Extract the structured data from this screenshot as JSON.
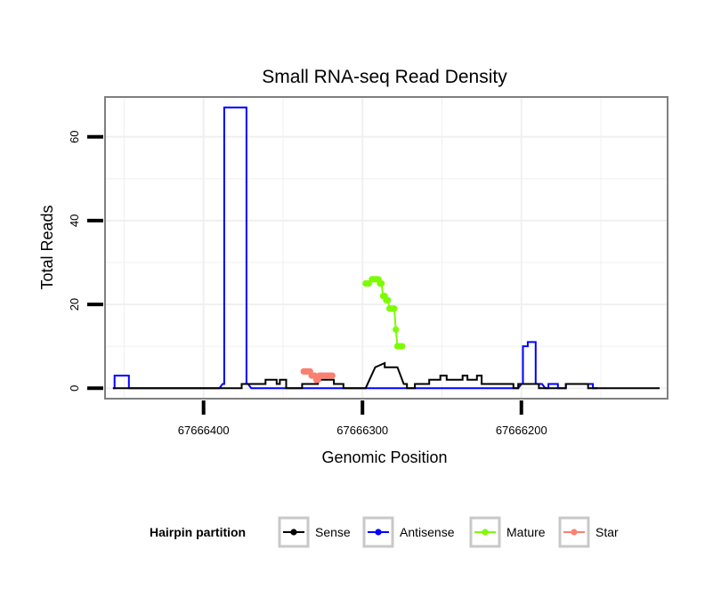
{
  "chart_data": {
    "type": "line",
    "title": "Small RNA-seq Read Density",
    "xlabel": "Genomic Position",
    "ylabel": "Total Reads",
    "x_reversed": true,
    "xlim": [
      67666462,
      67666108
    ],
    "ylim": [
      -2.5,
      69.5
    ],
    "x_ticks": [
      67666400,
      67666300,
      67666200
    ],
    "x_tick_labels": [
      "67666400",
      "67666300",
      "67666200"
    ],
    "y_ticks": [
      0,
      20,
      40,
      60
    ],
    "y_tick_labels": [
      "0",
      "20",
      "40",
      "60"
    ],
    "grid": true,
    "legend": {
      "title": "Hairpin partition",
      "placement": "bottom",
      "entries": [
        {
          "label": "Sense",
          "color": "#000000"
        },
        {
          "label": "Antisense",
          "color": "#0000ff"
        },
        {
          "label": "Mature",
          "color": "#7cfc00"
        },
        {
          "label": "Star",
          "color": "#fa8072"
        }
      ]
    },
    "series": [
      {
        "name": "Sense",
        "color": "#000000",
        "x": [
          67666457,
          67666376,
          67666376,
          67666361,
          67666361,
          67666354,
          67666354,
          67666352,
          67666352,
          67666348,
          67666348,
          67666338,
          67666338,
          67666328,
          67666328,
          67666318,
          67666318,
          67666312,
          67666312,
          67666298,
          67666292,
          67666286,
          67666286,
          67666278,
          67666274,
          67666272,
          67666272,
          67666267,
          67666267,
          67666258,
          67666258,
          67666251,
          67666251,
          67666247,
          67666247,
          67666237,
          67666237,
          67666234,
          67666234,
          67666228,
          67666228,
          67666225,
          67666225,
          67666217,
          67666217,
          67666205,
          67666205,
          67666202,
          67666202,
          67666192,
          67666192,
          67666189,
          67666189,
          67666172,
          67666172,
          67666169,
          67666169,
          67666158,
          67666158,
          67666149,
          67666149,
          67666113
        ],
        "y": [
          0,
          0,
          1,
          1,
          2,
          2,
          1,
          1,
          2,
          2,
          0,
          0,
          1,
          1,
          2,
          2,
          1,
          1,
          0,
          0,
          5,
          6,
          5,
          5,
          1,
          1,
          0,
          0,
          1,
          1,
          2,
          2,
          3,
          3,
          2,
          2,
          3,
          3,
          2,
          2,
          3,
          3,
          1,
          1,
          1,
          1,
          0,
          0,
          1,
          1,
          1,
          1,
          0,
          0,
          1,
          1,
          1,
          1,
          0,
          0,
          0,
          0
        ]
      },
      {
        "name": "Antisense",
        "color": "#0000ff",
        "x": [
          67666457,
          67666456,
          67666456,
          67666447,
          67666447,
          67666446,
          67666446,
          67666390,
          67666388,
          67666387,
          67666387,
          67666373,
          67666373,
          67666372,
          67666370,
          67666202,
          67666200,
          67666199,
          67666199,
          67666196,
          67666196,
          67666191,
          67666191,
          67666187,
          67666185,
          67666183,
          67666183,
          67666177,
          67666177,
          67666172,
          67666172,
          67666155,
          67666155,
          67666152,
          67666152
        ],
        "y": [
          0,
          0,
          3,
          3,
          0,
          0,
          0,
          0,
          1,
          1,
          67,
          67,
          1,
          1,
          0,
          0,
          1,
          1,
          10,
          10,
          11,
          11,
          1,
          1,
          0,
          0,
          1,
          1,
          0,
          0,
          1,
          1,
          0,
          0,
          0
        ]
      },
      {
        "name": "Mature",
        "color": "#7cfc00",
        "x": [
          67666298,
          67666297,
          67666296,
          67666294,
          67666293,
          67666292,
          67666291,
          67666290,
          67666289,
          67666288,
          67666287,
          67666286,
          67666285,
          67666284,
          67666283,
          67666282,
          67666281,
          67666280,
          67666279,
          67666278,
          67666277,
          67666276,
          67666275
        ],
        "y": [
          25,
          25,
          25,
          26,
          26,
          26,
          26,
          26,
          25,
          25,
          22,
          22,
          21,
          21,
          19,
          19,
          19,
          19,
          14,
          10,
          10,
          10,
          10
        ]
      },
      {
        "name": "Star",
        "color": "#fa8072",
        "x": [
          67666337,
          67666336,
          67666335,
          67666334,
          67666333,
          67666332,
          67666331,
          67666330,
          67666329,
          67666328,
          67666327,
          67666326,
          67666325,
          67666324,
          67666323,
          67666322,
          67666321,
          67666320,
          67666319
        ],
        "y": [
          4,
          4,
          4,
          4,
          4,
          3,
          3,
          3,
          2,
          2,
          3,
          3,
          3,
          3,
          3,
          3,
          3,
          3,
          3
        ]
      }
    ]
  }
}
